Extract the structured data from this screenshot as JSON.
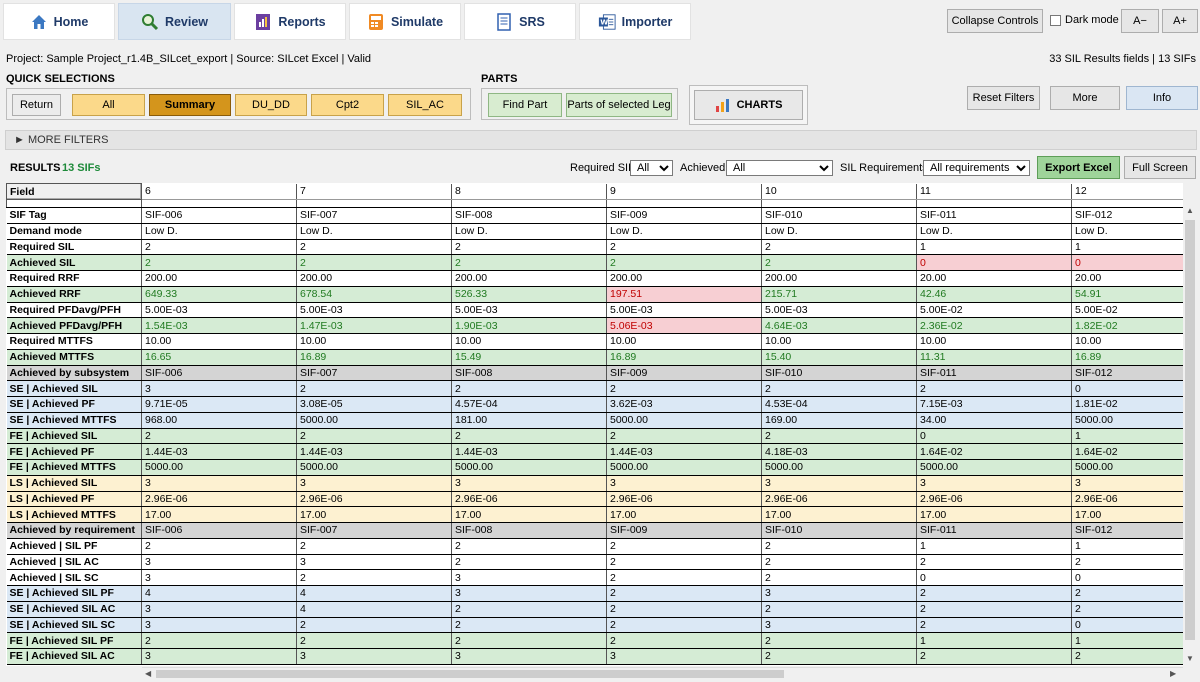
{
  "tabs": [
    {
      "label": "Home",
      "icon": "home-icon",
      "active": false
    },
    {
      "label": "Review",
      "icon": "review-search-icon",
      "active": true
    },
    {
      "label": "Reports",
      "icon": "reports-icon",
      "active": false
    },
    {
      "label": "Simulate",
      "icon": "simulate-icon",
      "active": false
    },
    {
      "label": "SRS",
      "icon": "srs-icon",
      "active": false
    },
    {
      "label": "Importer",
      "icon": "word-importer-icon",
      "active": false
    }
  ],
  "toolbar": {
    "collapse": "Collapse Controls",
    "dark_mode": "Dark mode",
    "font_minus": "A−",
    "font_plus": "A+"
  },
  "status": {
    "project": "Project: Sample Project_r1.4B_SILcet_export | Source: SILcet Excel | Valid",
    "fields": "33 SIL Results fields | 13 SIFs"
  },
  "quick": {
    "title": "QUICK SELECTIONS",
    "return_label": "Return",
    "buttons": [
      {
        "label": "All",
        "active": false
      },
      {
        "label": "Summary",
        "active": true
      },
      {
        "label": "DU_DD",
        "active": false
      },
      {
        "label": "Cpt2",
        "active": false
      },
      {
        "label": "SIL_AC",
        "active": false
      }
    ]
  },
  "parts": {
    "title": "PARTS",
    "find": "Find Part",
    "parts_leg": "Parts of selected Leg",
    "charts": "CHARTS"
  },
  "right_buttons": {
    "reset": "Reset Filters",
    "more": "More",
    "info": "Info"
  },
  "more_filters": "► MORE FILTERS",
  "results": {
    "title": "RESULTS",
    "count": "13 SIFs",
    "required_sil_label": "Required SIL:",
    "required_sil_value": "All",
    "achieved_label": "Achieved:",
    "achieved_value": "All",
    "sil_req_label": "SIL Requirements:",
    "sil_req_value": "All requirements",
    "export": "Export Excel",
    "fullscreen": "Full Screen"
  },
  "grid": {
    "field_header": "Field",
    "columns": [
      "6",
      "7",
      "8",
      "9",
      "10",
      "11",
      "12"
    ],
    "rows": [
      {
        "f": "SIF Tag",
        "bg": "w",
        "v": [
          "SIF-006",
          "SIF-007",
          "SIF-008",
          "SIF-009",
          "SIF-010",
          "SIF-011",
          "SIF-012"
        ]
      },
      {
        "f": "Demand mode",
        "bg": "w",
        "v": [
          "Low D.",
          "Low D.",
          "Low D.",
          "Low D.",
          "Low D.",
          "Low D.",
          "Low D."
        ]
      },
      {
        "f": "Required SIL",
        "bg": "w",
        "v": [
          "2",
          "2",
          "2",
          "2",
          "2",
          "1",
          "1"
        ]
      },
      {
        "f": "Achieved SIL",
        "bg": "g",
        "v": [
          "2",
          "2",
          "2",
          "2",
          "2",
          "0",
          "0"
        ],
        "st": [
          "g",
          "g",
          "g",
          "g",
          "g",
          "r",
          "r"
        ]
      },
      {
        "f": "Required RRF",
        "bg": "w",
        "v": [
          "200.00",
          "200.00",
          "200.00",
          "200.00",
          "200.00",
          "20.00",
          "20.00"
        ]
      },
      {
        "f": "Achieved RRF",
        "bg": "g",
        "v": [
          "649.33",
          "678.54",
          "526.33",
          "197.51",
          "215.71",
          "42.46",
          "54.91"
        ],
        "st": [
          "g",
          "g",
          "g",
          "r",
          "g",
          "g",
          "g"
        ]
      },
      {
        "f": "Required PFDavg/PFH",
        "bg": "w",
        "v": [
          "5.00E-03",
          "5.00E-03",
          "5.00E-03",
          "5.00E-03",
          "5.00E-03",
          "5.00E-02",
          "5.00E-02"
        ]
      },
      {
        "f": "Achieved PFDavg/PFH",
        "bg": "g",
        "v": [
          "1.54E-03",
          "1.47E-03",
          "1.90E-03",
          "5.06E-03",
          "4.64E-03",
          "2.36E-02",
          "1.82E-02"
        ],
        "st": [
          "g",
          "g",
          "g",
          "r",
          "g",
          "g",
          "g"
        ]
      },
      {
        "f": "Required MTTFS",
        "bg": "w",
        "v": [
          "10.00",
          "10.00",
          "10.00",
          "10.00",
          "10.00",
          "10.00",
          "10.00"
        ]
      },
      {
        "f": "Achieved MTTFS",
        "bg": "g",
        "v": [
          "16.65",
          "16.89",
          "15.49",
          "16.89",
          "15.40",
          "11.31",
          "16.89"
        ],
        "st": [
          "g",
          "g",
          "g",
          "g",
          "g",
          "g",
          "g"
        ]
      },
      {
        "f": "Achieved by subsystem",
        "bg": "s",
        "v": [
          "SIF-006",
          "SIF-007",
          "SIF-008",
          "SIF-009",
          "SIF-010",
          "SIF-011",
          "SIF-012"
        ]
      },
      {
        "f": "SE | Achieved SIL",
        "bg": "b",
        "v": [
          "3",
          "2",
          "2",
          "2",
          "2",
          "2",
          "0"
        ]
      },
      {
        "f": "SE | Achieved PF",
        "bg": "b",
        "v": [
          "9.71E-05",
          "3.08E-05",
          "4.57E-04",
          "3.62E-03",
          "4.53E-04",
          "7.15E-03",
          "1.81E-02"
        ]
      },
      {
        "f": "SE | Achieved MTTFS",
        "bg": "b",
        "v": [
          "968.00",
          "5000.00",
          "181.00",
          "5000.00",
          "169.00",
          "34.00",
          "5000.00"
        ]
      },
      {
        "f": "FE | Achieved SIL",
        "bg": "g",
        "v": [
          "2",
          "2",
          "2",
          "2",
          "2",
          "0",
          "1"
        ]
      },
      {
        "f": "FE | Achieved PF",
        "bg": "g",
        "v": [
          "1.44E-03",
          "1.44E-03",
          "1.44E-03",
          "1.44E-03",
          "4.18E-03",
          "1.64E-02",
          "1.64E-02"
        ]
      },
      {
        "f": "FE | Achieved MTTFS",
        "bg": "g",
        "v": [
          "5000.00",
          "5000.00",
          "5000.00",
          "5000.00",
          "5000.00",
          "5000.00",
          "5000.00"
        ]
      },
      {
        "f": "LS | Achieved SIL",
        "bg": "y",
        "v": [
          "3",
          "3",
          "3",
          "3",
          "3",
          "3",
          "3"
        ]
      },
      {
        "f": "LS | Achieved PF",
        "bg": "y",
        "v": [
          "2.96E-06",
          "2.96E-06",
          "2.96E-06",
          "2.96E-06",
          "2.96E-06",
          "2.96E-06",
          "2.96E-06"
        ]
      },
      {
        "f": "LS | Achieved MTTFS",
        "bg": "y",
        "v": [
          "17.00",
          "17.00",
          "17.00",
          "17.00",
          "17.00",
          "17.00",
          "17.00"
        ]
      },
      {
        "f": "Achieved by requirement",
        "bg": "s",
        "v": [
          "SIF-006",
          "SIF-007",
          "SIF-008",
          "SIF-009",
          "SIF-010",
          "SIF-011",
          "SIF-012"
        ]
      },
      {
        "f": "Achieved | SIL PF",
        "bg": "w",
        "v": [
          "2",
          "2",
          "2",
          "2",
          "2",
          "1",
          "1"
        ]
      },
      {
        "f": "Achieved | SIL AC",
        "bg": "w",
        "v": [
          "3",
          "3",
          "2",
          "2",
          "2",
          "2",
          "2"
        ]
      },
      {
        "f": "Achieved | SIL SC",
        "bg": "w",
        "v": [
          "3",
          "2",
          "3",
          "2",
          "2",
          "0",
          "0"
        ]
      },
      {
        "f": "SE | Achieved SIL PF",
        "bg": "b",
        "v": [
          "4",
          "4",
          "3",
          "2",
          "3",
          "2",
          "2"
        ]
      },
      {
        "f": "SE | Achieved SIL AC",
        "bg": "b",
        "v": [
          "3",
          "4",
          "2",
          "2",
          "2",
          "2",
          "2"
        ]
      },
      {
        "f": "SE | Achieved SIL SC",
        "bg": "b",
        "v": [
          "3",
          "2",
          "2",
          "2",
          "3",
          "2",
          "0"
        ]
      },
      {
        "f": "FE | Achieved SIL PF",
        "bg": "g",
        "v": [
          "2",
          "2",
          "2",
          "2",
          "2",
          "1",
          "1"
        ]
      },
      {
        "f": "FE | Achieved SIL AC",
        "bg": "g",
        "v": [
          "3",
          "3",
          "3",
          "3",
          "2",
          "2",
          "2"
        ]
      }
    ]
  },
  "colors": {
    "tab_active": "#d9e5f1",
    "quick_button": "#fbd98a",
    "quick_active": "#d4951c",
    "parts_button": "#d8ecd0",
    "export_button": "#9fd49a",
    "ok_green_text": "#207a20",
    "fail_red_text": "#c00000",
    "fail_red_bg": "#f7cfd3"
  }
}
